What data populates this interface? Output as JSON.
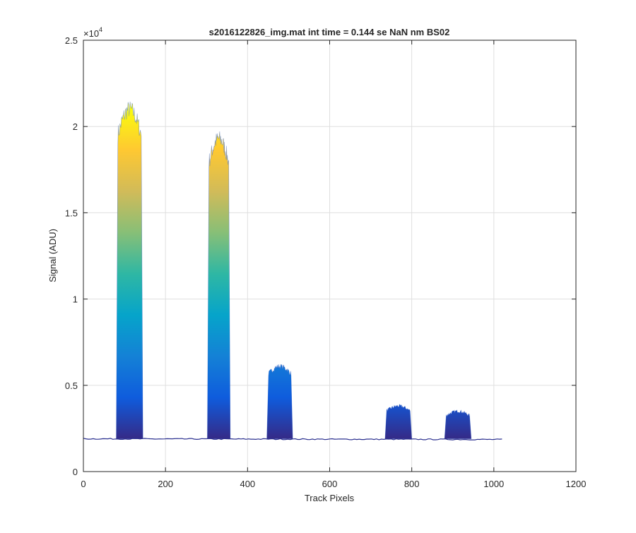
{
  "chart_data": {
    "type": "area",
    "title": "s2016122826_img.mat int time = 0.144 se  NaN nm BS02",
    "xlabel": "Track Pixels",
    "ylabel": "Signal (ADU)",
    "xlim": [
      0,
      1200
    ],
    "ylim": [
      0,
      25000
    ],
    "x_ticks": [
      0,
      200,
      400,
      600,
      800,
      1000,
      1200
    ],
    "x_tick_labels": [
      "0",
      "200",
      "400",
      "600",
      "800",
      "1000",
      "1200"
    ],
    "y_ticks": [
      0,
      5000,
      10000,
      15000,
      20000,
      25000
    ],
    "y_tick_labels": [
      "0",
      "0.5",
      "1",
      "1.5",
      "2",
      "2.5"
    ],
    "y_exponent_label": "×10",
    "y_exponent_power": "4",
    "grid": true,
    "legend": "none",
    "colormap": [
      "#352a87",
      "#0f5cdd",
      "#1481d6",
      "#06a4ca",
      "#2eb7a4",
      "#87bf77",
      "#d1bb59",
      "#fec832",
      "#f9fb0e"
    ],
    "baseline": 1900,
    "x_range": [
      0,
      1023
    ],
    "peaks": [
      {
        "x_start": 80,
        "x_end": 145,
        "peak": 21000
      },
      {
        "x_start": 302,
        "x_end": 358,
        "peak": 19300
      },
      {
        "x_start": 447,
        "x_end": 510,
        "peak": 6100
      },
      {
        "x_start": 735,
        "x_end": 800,
        "peak": 3800
      },
      {
        "x_start": 880,
        "x_end": 945,
        "peak": 3500
      }
    ]
  }
}
